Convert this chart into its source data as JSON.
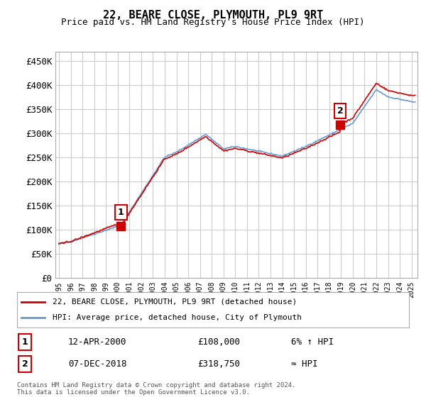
{
  "title": "22, BEARE CLOSE, PLYMOUTH, PL9 9RT",
  "subtitle": "Price paid vs. HM Land Registry's House Price Index (HPI)",
  "ylabel_ticks": [
    "£0",
    "£50K",
    "£100K",
    "£150K",
    "£200K",
    "£250K",
    "£300K",
    "£350K",
    "£400K",
    "£450K"
  ],
  "ytick_values": [
    0,
    50000,
    100000,
    150000,
    200000,
    250000,
    300000,
    350000,
    400000,
    450000
  ],
  "ylim": [
    0,
    470000
  ],
  "xlim_start": 1995.0,
  "xlim_end": 2025.5,
  "background_color": "#ffffff",
  "plot_bg_color": "#ffffff",
  "grid_color": "#cccccc",
  "sale1_x": 2000.28,
  "sale1_y": 108000,
  "sale2_x": 2018.92,
  "sale2_y": 318750,
  "legend_label_red": "22, BEARE CLOSE, PLYMOUTH, PL9 9RT (detached house)",
  "legend_label_blue": "HPI: Average price, detached house, City of Plymouth",
  "annotation1_date": "12-APR-2000",
  "annotation1_price": "£108,000",
  "annotation1_hpi": "6% ↑ HPI",
  "annotation2_date": "07-DEC-2018",
  "annotation2_price": "£318,750",
  "annotation2_hpi": "≈ HPI",
  "footer": "Contains HM Land Registry data © Crown copyright and database right 2024.\nThis data is licensed under the Open Government Licence v3.0.",
  "red_color": "#cc0000",
  "blue_color": "#6699cc"
}
